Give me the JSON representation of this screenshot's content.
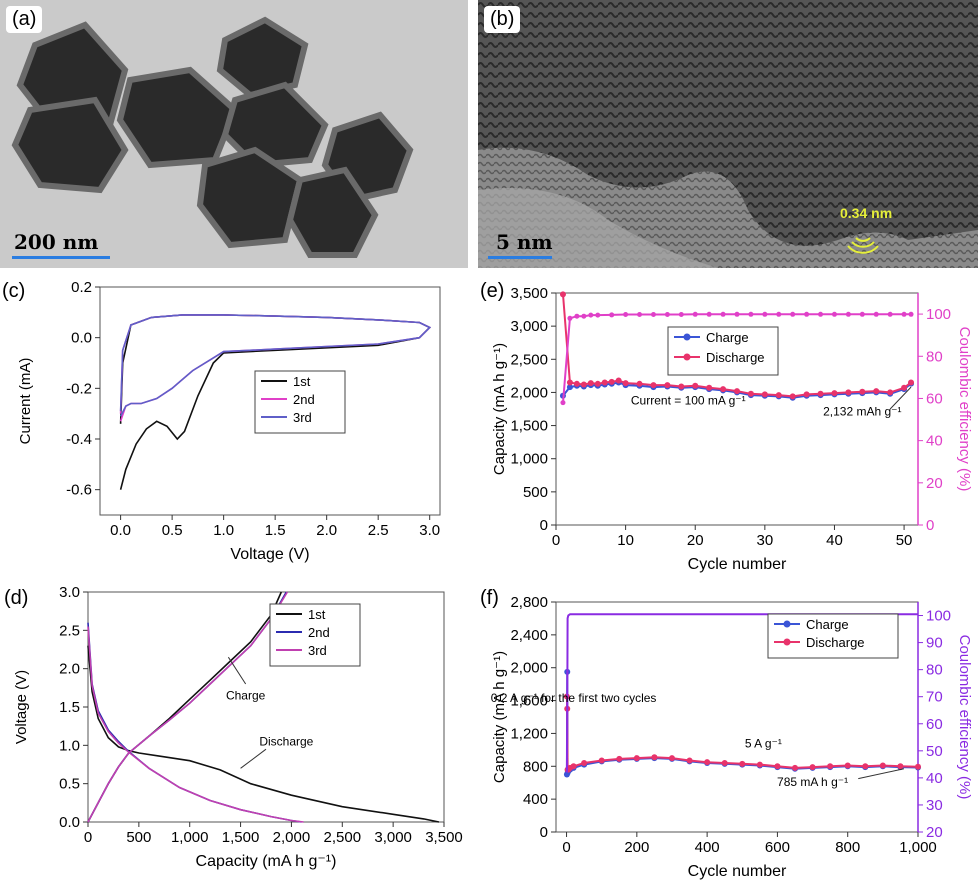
{
  "panel_labels": [
    "(a)",
    "(b)",
    "(c)",
    "(d)",
    "(e)",
    "(f)"
  ],
  "micrographs": {
    "a": {
      "scale_bar": "200 nm"
    },
    "b": {
      "scale_bar": "5 nm",
      "annotation": "0.34 nm"
    }
  },
  "colors": {
    "c": {
      "1st": "#111111",
      "2nd": "#e040c8",
      "3rd": "#5f5fc8"
    },
    "d": {
      "1st": "#111111",
      "2nd": "#2b2bb0",
      "3rd": "#c040b0"
    },
    "charge": "#3b55d6",
    "discharge": "#e8336b",
    "ce_e": "#e040c8",
    "ce_f": "#8a2be2"
  },
  "chart_data": [
    {
      "id": "c",
      "type": "line",
      "xlabel": "Voltage (V)",
      "ylabel": "Current (mA)",
      "xlim": [
        -0.2,
        3.1
      ],
      "ylim": [
        -0.7,
        0.2
      ],
      "xticks": [
        "0.0",
        "0.5",
        "1.0",
        "1.5",
        "2.0",
        "2.5",
        "3.0"
      ],
      "xtick_values": [
        0,
        0.5,
        1,
        1.5,
        2,
        2.5,
        3
      ],
      "yticks": [
        "-0.6",
        "-0.4",
        "-0.2",
        "0.0",
        "0.2"
      ],
      "ytick_values": [
        -0.6,
        -0.4,
        -0.2,
        0,
        0.2
      ],
      "legend": "center-right",
      "series": [
        {
          "name": "1st",
          "x": [
            0.0,
            0.05,
            0.15,
            0.25,
            0.35,
            0.45,
            0.55,
            0.62,
            0.75,
            0.9,
            1.0,
            1.5,
            2.0,
            2.5,
            2.9,
            3.0,
            2.9,
            2.5,
            2.0,
            1.5,
            1.0,
            0.6,
            0.3,
            0.1,
            0.02,
            0.0
          ],
          "y": [
            -0.6,
            -0.52,
            -0.42,
            -0.36,
            -0.33,
            -0.35,
            -0.4,
            -0.37,
            -0.23,
            -0.1,
            -0.06,
            -0.05,
            -0.04,
            -0.03,
            0.0,
            0.04,
            0.06,
            0.07,
            0.08,
            0.085,
            0.09,
            0.09,
            0.08,
            0.05,
            -0.1,
            -0.34
          ]
        },
        {
          "name": "2nd",
          "x": [
            0.0,
            0.05,
            0.1,
            0.2,
            0.35,
            0.5,
            0.7,
            0.9,
            1.0,
            1.5,
            2.0,
            2.5,
            2.9,
            3.0,
            2.9,
            2.5,
            2.0,
            1.5,
            1.0,
            0.6,
            0.3,
            0.1,
            0.02,
            0.0
          ],
          "y": [
            -0.33,
            -0.27,
            -0.26,
            -0.26,
            -0.24,
            -0.2,
            -0.13,
            -0.08,
            -0.055,
            -0.045,
            -0.035,
            -0.025,
            0.0,
            0.04,
            0.06,
            0.07,
            0.08,
            0.085,
            0.09,
            0.09,
            0.08,
            0.05,
            -0.05,
            -0.3
          ]
        },
        {
          "name": "3rd",
          "x": [
            0.0,
            0.05,
            0.1,
            0.2,
            0.35,
            0.5,
            0.7,
            0.9,
            1.0,
            1.5,
            2.0,
            2.5,
            2.9,
            3.0,
            2.9,
            2.5,
            2.0,
            1.5,
            1.0,
            0.6,
            0.3,
            0.1,
            0.02,
            0.0
          ],
          "y": [
            -0.31,
            -0.27,
            -0.26,
            -0.26,
            -0.24,
            -0.2,
            -0.13,
            -0.08,
            -0.055,
            -0.045,
            -0.035,
            -0.025,
            0.0,
            0.04,
            0.06,
            0.07,
            0.08,
            0.085,
            0.09,
            0.09,
            0.08,
            0.05,
            -0.05,
            -0.29
          ]
        }
      ]
    },
    {
      "id": "d",
      "type": "line",
      "xlabel": "Capacity (mA h g⁻¹)",
      "ylabel": "Voltage (V)",
      "xlim": [
        0,
        3500
      ],
      "ylim": [
        0,
        3.0
      ],
      "xticks": [
        "0",
        "500",
        "1,000",
        "1,500",
        "2,000",
        "2,500",
        "3,000",
        "3,500"
      ],
      "xtick_values": [
        0,
        500,
        1000,
        1500,
        2000,
        2500,
        3000,
        3500
      ],
      "yticks": [
        "0.0",
        "0.5",
        "1.0",
        "1.5",
        "2.0",
        "2.5",
        "3.0"
      ],
      "ytick_values": [
        0,
        0.5,
        1,
        1.5,
        2,
        2.5,
        3
      ],
      "legend": "top-right",
      "annotations": [
        {
          "text": "Charge",
          "x": 1550,
          "y": 1.6
        },
        {
          "text": "Discharge",
          "x": 1950,
          "y": 1.0
        }
      ],
      "series": [
        {
          "name": "1st discharge",
          "legend": "1st",
          "x": [
            0,
            40,
            100,
            200,
            300,
            400,
            500,
            700,
            1000,
            1300,
            1600,
            2000,
            2500,
            3000,
            3300,
            3450
          ],
          "y": [
            2.3,
            1.7,
            1.35,
            1.1,
            0.98,
            0.93,
            0.9,
            0.86,
            0.8,
            0.68,
            0.5,
            0.35,
            0.2,
            0.1,
            0.04,
            0.0
          ]
        },
        {
          "name": "1st charge",
          "x": [
            0,
            100,
            200,
            300,
            400,
            600,
            800,
            1000,
            1200,
            1400,
            1600,
            1800,
            1900
          ],
          "y": [
            0.0,
            0.25,
            0.5,
            0.72,
            0.9,
            1.12,
            1.35,
            1.6,
            1.85,
            2.1,
            2.35,
            2.7,
            3.0
          ]
        },
        {
          "name": "2nd discharge",
          "legend": "2nd",
          "x": [
            0,
            40,
            100,
            200,
            300,
            400,
            600,
            900,
            1200,
            1500,
            1800,
            2000,
            2100
          ],
          "y": [
            2.6,
            1.8,
            1.45,
            1.2,
            1.05,
            0.92,
            0.7,
            0.45,
            0.28,
            0.16,
            0.07,
            0.02,
            0.0
          ]
        },
        {
          "name": "2nd charge",
          "x": [
            0,
            100,
            200,
            300,
            400,
            600,
            800,
            1000,
            1200,
            1400,
            1600,
            1800,
            1950
          ],
          "y": [
            0.0,
            0.25,
            0.5,
            0.72,
            0.9,
            1.12,
            1.33,
            1.55,
            1.8,
            2.05,
            2.3,
            2.65,
            3.0
          ]
        },
        {
          "name": "3rd discharge",
          "legend": "3rd",
          "x": [
            0,
            40,
            100,
            200,
            300,
            400,
            600,
            900,
            1200,
            1500,
            1800,
            2000,
            2120
          ],
          "y": [
            2.55,
            1.78,
            1.42,
            1.18,
            1.03,
            0.91,
            0.7,
            0.45,
            0.28,
            0.16,
            0.07,
            0.02,
            0.0
          ]
        },
        {
          "name": "3rd charge",
          "x": [
            0,
            100,
            200,
            300,
            400,
            600,
            800,
            1000,
            1200,
            1400,
            1600,
            1800,
            1960
          ],
          "y": [
            0.0,
            0.25,
            0.5,
            0.72,
            0.9,
            1.12,
            1.33,
            1.55,
            1.8,
            2.05,
            2.3,
            2.65,
            3.0
          ]
        }
      ]
    },
    {
      "id": "e",
      "type": "line",
      "xlabel": "Cycle number",
      "ylabel": "Capacity (mA h g⁻¹)",
      "y2label": "Coulombic efficiency (%)",
      "xlim": [
        0,
        52
      ],
      "ylim": [
        0,
        3500
      ],
      "y2lim": [
        0,
        110
      ],
      "xticks": [
        "0",
        "10",
        "20",
        "30",
        "40",
        "50"
      ],
      "xtick_values": [
        0,
        10,
        20,
        30,
        40,
        50
      ],
      "yticks": [
        "0",
        "500",
        "1,000",
        "1,500",
        "2,000",
        "2,500",
        "3,000",
        "3,500"
      ],
      "ytick_values": [
        0,
        500,
        1000,
        1500,
        2000,
        2500,
        3000,
        3500
      ],
      "y2ticks": [
        "0",
        "20",
        "40",
        "60",
        "80",
        "100"
      ],
      "y2tick_values": [
        0,
        20,
        40,
        60,
        80,
        100
      ],
      "legend": "top-center",
      "annotations": [
        {
          "text": "Current = 100 mA g⁻¹",
          "x": 19,
          "y": 1820
        },
        {
          "text": "2,132 mAh g⁻¹",
          "x": 44,
          "y": 1650
        }
      ],
      "series": [
        {
          "name": "Charge",
          "x": [
            1,
            2,
            3,
            4,
            5,
            6,
            7,
            8,
            9,
            10,
            12,
            14,
            16,
            18,
            20,
            22,
            24,
            26,
            28,
            30,
            32,
            34,
            36,
            38,
            40,
            42,
            44,
            46,
            48,
            50,
            51
          ],
          "y": [
            1950,
            2080,
            2100,
            2090,
            2110,
            2100,
            2120,
            2130,
            2150,
            2110,
            2100,
            2080,
            2090,
            2070,
            2080,
            2050,
            2030,
            2000,
            1960,
            1950,
            1940,
            1920,
            1950,
            1960,
            1970,
            1980,
            1990,
            2000,
            1980,
            2050,
            2132
          ]
        },
        {
          "name": "Discharge",
          "x": [
            1,
            2,
            3,
            4,
            5,
            6,
            7,
            8,
            9,
            10,
            12,
            14,
            16,
            18,
            20,
            22,
            24,
            26,
            28,
            30,
            32,
            34,
            36,
            38,
            40,
            42,
            44,
            46,
            48,
            50,
            51
          ],
          "y": [
            3480,
            2150,
            2130,
            2120,
            2140,
            2130,
            2150,
            2160,
            2180,
            2140,
            2130,
            2110,
            2110,
            2090,
            2100,
            2070,
            2050,
            2020,
            1980,
            1970,
            1960,
            1940,
            1970,
            1980,
            1990,
            2000,
            2010,
            2020,
            2000,
            2070,
            2150
          ]
        },
        {
          "name": "Coulombic efficiency",
          "axis": "y2",
          "x": [
            1,
            2,
            3,
            4,
            5,
            6,
            8,
            10,
            12,
            14,
            16,
            18,
            20,
            22,
            24,
            26,
            28,
            30,
            32,
            34,
            36,
            38,
            40,
            42,
            44,
            46,
            48,
            50,
            51
          ],
          "y": [
            58,
            98,
            99,
            99,
            99.5,
            99.5,
            99.6,
            99.8,
            99.8,
            99.8,
            99.8,
            99.8,
            99.9,
            99.9,
            99.9,
            99.9,
            99.9,
            99.9,
            99.9,
            99.9,
            99.9,
            99.9,
            99.9,
            99.9,
            99.9,
            99.9,
            99.9,
            99.9,
            99.9
          ]
        }
      ]
    },
    {
      "id": "f",
      "type": "line",
      "xlabel": "Cycle number",
      "ylabel": "Capacity (mA h g⁻¹)",
      "y2label": "Coulombic efficiency (%)",
      "xlim": [
        -30,
        1000
      ],
      "ylim": [
        0,
        2800
      ],
      "y2lim": [
        20,
        105
      ],
      "xticks": [
        "0",
        "200",
        "400",
        "600",
        "800",
        "1,000"
      ],
      "xtick_values": [
        0,
        200,
        400,
        600,
        800,
        1000
      ],
      "yticks": [
        "0",
        "400",
        "800",
        "1,200",
        "1,600",
        "2,000",
        "2,400",
        "2,800"
      ],
      "ytick_values": [
        0,
        400,
        800,
        1200,
        1600,
        2000,
        2400,
        2800
      ],
      "y2ticks": [
        "20",
        "30",
        "40",
        "50",
        "60",
        "70",
        "80",
        "90",
        "100"
      ],
      "y2tick_values": [
        20,
        30,
        40,
        50,
        60,
        70,
        80,
        90,
        100
      ],
      "legend": "top-right",
      "annotations": [
        {
          "text": "0.2 A g⁻¹ for the first two cycles",
          "x": 20,
          "y": 1580
        },
        {
          "text": "5 A g⁻¹",
          "x": 560,
          "y": 1030
        },
        {
          "text": "785 mA h g⁻¹",
          "x": 700,
          "y": 560
        }
      ],
      "series": [
        {
          "name": "Charge",
          "x": [
            1,
            2,
            3,
            5,
            10,
            20,
            50,
            100,
            150,
            200,
            250,
            300,
            350,
            400,
            450,
            500,
            550,
            600,
            650,
            700,
            750,
            800,
            850,
            900,
            950,
            1000
          ],
          "y": [
            700,
            1950,
            720,
            740,
            760,
            780,
            820,
            860,
            880,
            890,
            900,
            890,
            860,
            840,
            830,
            820,
            810,
            790,
            770,
            780,
            790,
            800,
            790,
            800,
            790,
            785
          ]
        },
        {
          "name": "Discharge",
          "x": [
            1,
            2,
            3,
            5,
            10,
            20,
            50,
            100,
            150,
            200,
            250,
            300,
            350,
            400,
            450,
            500,
            550,
            600,
            650,
            700,
            750,
            800,
            850,
            900,
            950,
            1000
          ],
          "y": [
            1650,
            1500,
            760,
            760,
            780,
            800,
            840,
            870,
            890,
            900,
            910,
            900,
            870,
            850,
            840,
            830,
            820,
            800,
            780,
            790,
            800,
            810,
            800,
            810,
            800,
            795
          ]
        },
        {
          "name": "Coulombic efficiency",
          "axis": "y2",
          "x": [
            1,
            2,
            3,
            5,
            10,
            20,
            50,
            100,
            200,
            300,
            400,
            500,
            600,
            700,
            800,
            900,
            1000
          ],
          "y": [
            42,
            60,
            99,
            100,
            100.5,
            100.5,
            100.5,
            100.5,
            100.5,
            100.5,
            100.5,
            100.5,
            100.5,
            100.5,
            100.5,
            100.5,
            100.5
          ]
        }
      ]
    }
  ]
}
